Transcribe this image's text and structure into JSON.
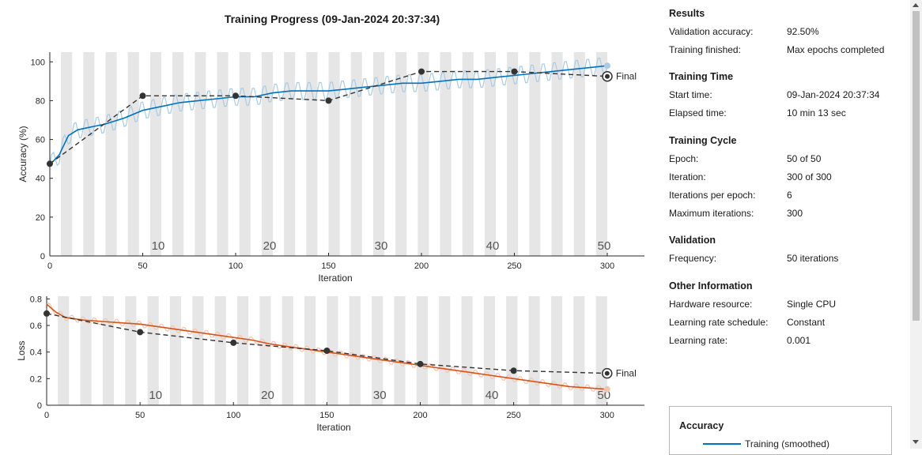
{
  "plot_title": "Training Progress (09-Jan-2024 20:37:34)",
  "colors": {
    "accuracy_line": "#0072bd",
    "accuracy_raw": "#a9cbe3",
    "loss_line": "#d95319",
    "loss_raw": "#f2c5ae",
    "validation": "#333333",
    "epoch_band": "#e6e6e6"
  },
  "chart_data": [
    {
      "type": "line",
      "ylabel": "Accuracy (%)",
      "xlabel": "Iteration",
      "xlim": [
        0,
        320
      ],
      "ylim": [
        0,
        105
      ],
      "x_ticks": [
        0,
        50,
        100,
        150,
        200,
        250,
        300
      ],
      "y_ticks": [
        0,
        20,
        40,
        60,
        80,
        100
      ],
      "epoch_labels": [
        10,
        20,
        30,
        40,
        50
      ],
      "series": [
        {
          "role": "training-smoothed",
          "x": [
            0,
            5,
            10,
            15,
            20,
            25,
            30,
            40,
            50,
            60,
            70,
            80,
            90,
            100,
            110,
            120,
            130,
            140,
            150,
            160,
            170,
            180,
            190,
            200,
            210,
            220,
            230,
            240,
            250,
            260,
            270,
            280,
            290,
            300
          ],
          "y": [
            47,
            52,
            62,
            65,
            66,
            67,
            68,
            71,
            75,
            77,
            79,
            80,
            81,
            82,
            82,
            84,
            85,
            85,
            85,
            86,
            87,
            88,
            89,
            89,
            90,
            91,
            91,
            92,
            93,
            94,
            95,
            96,
            97,
            98
          ]
        },
        {
          "role": "validation",
          "name": "Final",
          "x": [
            0,
            50,
            100,
            150,
            200,
            250,
            300
          ],
          "y": [
            47.5,
            82.5,
            82.5,
            80,
            95,
            95,
            92.5
          ]
        }
      ]
    },
    {
      "type": "line",
      "ylabel": "Loss",
      "xlabel": "Iteration",
      "xlim": [
        0,
        320
      ],
      "ylim": [
        0,
        0.82
      ],
      "x_ticks": [
        0,
        50,
        100,
        150,
        200,
        250,
        300
      ],
      "y_ticks": [
        0,
        0.2,
        0.4,
        0.6,
        0.8
      ],
      "y_tick_labels": [
        "0",
        "0.2",
        "0.4",
        "0.6",
        "0.8"
      ],
      "epoch_labels": [
        10,
        20,
        30,
        40,
        50
      ],
      "series": [
        {
          "role": "training-smoothed",
          "x": [
            0,
            5,
            10,
            15,
            20,
            30,
            40,
            50,
            60,
            70,
            80,
            90,
            100,
            110,
            120,
            130,
            140,
            150,
            160,
            170,
            180,
            190,
            200,
            210,
            220,
            230,
            240,
            250,
            260,
            270,
            280,
            290,
            300
          ],
          "y": [
            0.76,
            0.7,
            0.66,
            0.65,
            0.64,
            0.63,
            0.62,
            0.61,
            0.59,
            0.57,
            0.55,
            0.53,
            0.51,
            0.49,
            0.46,
            0.44,
            0.42,
            0.4,
            0.38,
            0.36,
            0.34,
            0.32,
            0.3,
            0.28,
            0.26,
            0.24,
            0.22,
            0.2,
            0.18,
            0.16,
            0.14,
            0.13,
            0.12
          ]
        },
        {
          "role": "validation",
          "name": "Final",
          "x": [
            0,
            50,
            100,
            150,
            200,
            250,
            300
          ],
          "y": [
            0.69,
            0.55,
            0.47,
            0.41,
            0.31,
            0.26,
            0.24
          ]
        }
      ]
    }
  ],
  "info": {
    "results": {
      "title": "Results",
      "rows": [
        {
          "label": "Validation accuracy:",
          "value": "92.50%"
        },
        {
          "label": "Training finished:",
          "value": "Max epochs completed"
        }
      ]
    },
    "training_time": {
      "title": "Training Time",
      "rows": [
        {
          "label": "Start time:",
          "value": "09-Jan-2024 20:37:34"
        },
        {
          "label": "Elapsed time:",
          "value": "10 min 13 sec"
        }
      ]
    },
    "training_cycle": {
      "title": "Training Cycle",
      "rows": [
        {
          "label": "Epoch:",
          "value": "50 of 50"
        },
        {
          "label": "Iteration:",
          "value": "300 of 300"
        },
        {
          "label": "Iterations per epoch:",
          "value": "6"
        },
        {
          "label": "Maximum iterations:",
          "value": "300"
        }
      ]
    },
    "validation": {
      "title": "Validation",
      "rows": [
        {
          "label": "Frequency:",
          "value": "50 iterations"
        }
      ]
    },
    "other": {
      "title": "Other Information",
      "rows": [
        {
          "label": "Hardware resource:",
          "value": "Single CPU"
        },
        {
          "label": "Learning rate schedule:",
          "value": "Constant"
        },
        {
          "label": "Learning rate:",
          "value": "0.001"
        }
      ]
    }
  },
  "legend": {
    "title": "Accuracy",
    "items": [
      {
        "label": "Training (smoothed)"
      }
    ]
  }
}
